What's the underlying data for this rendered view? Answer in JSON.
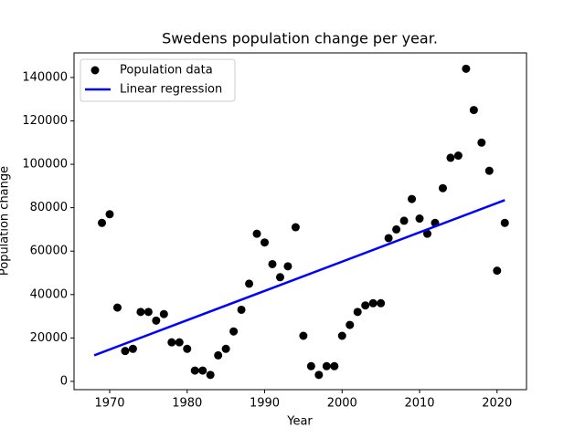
{
  "chart_data": {
    "type": "scatter",
    "title": "Swedens population change per year.",
    "x_label": "Year",
    "y_label": "Population change",
    "series": [
      {
        "name": "Population data",
        "type": "scatter",
        "color": "#000000",
        "x": [
          1969,
          1970,
          1971,
          1972,
          1973,
          1974,
          1975,
          1976,
          1977,
          1978,
          1979,
          1980,
          1981,
          1982,
          1983,
          1984,
          1985,
          1986,
          1987,
          1988,
          1989,
          1990,
          1991,
          1992,
          1993,
          1994,
          1995,
          1996,
          1997,
          1998,
          1999,
          2000,
          2001,
          2002,
          2003,
          2004,
          2005,
          2006,
          2007,
          2008,
          2009,
          2010,
          2011,
          2012,
          2013,
          2014,
          2015,
          2016,
          2017,
          2018,
          2019,
          2020,
          2021
        ],
        "values": [
          73000,
          77000,
          34000,
          14000,
          15000,
          32000,
          32000,
          28000,
          31000,
          18000,
          18000,
          15000,
          5000,
          5000,
          3000,
          12000,
          15000,
          23000,
          33000,
          45000,
          68000,
          64000,
          54000,
          48000,
          53000,
          71000,
          21000,
          7000,
          3000,
          7000,
          7000,
          21000,
          26000,
          32000,
          35000,
          36000,
          36000,
          66000,
          70000,
          74000,
          84000,
          75000,
          68000,
          73000,
          89000,
          103000,
          104000,
          144000,
          125000,
          110000,
          97000,
          51000,
          73000
        ]
      },
      {
        "name": "Linear regression",
        "type": "line",
        "color": "#0000ff",
        "x": [
          1968,
          2021
        ],
        "values": [
          12000,
          83500
        ]
      }
    ],
    "xlim": [
      1965.4,
      2023.8
    ],
    "xticks": [
      1970,
      1980,
      1990,
      2000,
      2010,
      2020
    ],
    "ylim": [
      -3800,
      151300
    ],
    "yticks": [
      0,
      20000,
      40000,
      60000,
      80000,
      100000,
      120000,
      140000
    ],
    "legend": "upper-left"
  }
}
